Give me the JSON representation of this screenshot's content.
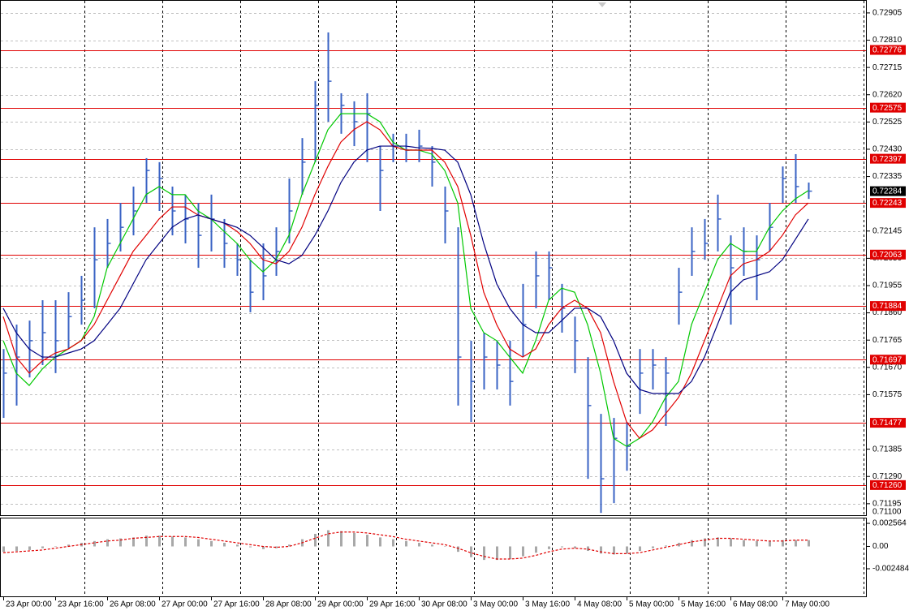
{
  "chart_data": [
    {
      "type": "ohlc",
      "color": "#3a63c4",
      "grid": true,
      "categories": [
        "23 Apr 00:00",
        null,
        null,
        null,
        "23 Apr 16:00",
        null,
        null,
        null,
        "26 Apr 08:00",
        null,
        null,
        null,
        "27 Apr 00:00",
        null,
        null,
        null,
        "27 Apr 16:00",
        null,
        null,
        null,
        "28 Apr 08:00",
        null,
        null,
        null,
        "29 Apr 00:00",
        null,
        null,
        null,
        "29 Apr 16:00",
        null,
        null,
        null,
        "30 Apr 08:00",
        null,
        null,
        null,
        "3 May 00:00",
        null,
        null,
        null,
        "3 May 16:00",
        null,
        null,
        null,
        "4 May 08:00",
        null,
        null,
        null,
        "5 May 00:00",
        null,
        null,
        null,
        "5 May 16:00",
        null,
        null,
        null,
        "6 May 08:00",
        null,
        null,
        null,
        "7 May 00:00",
        null,
        null
      ],
      "high": [
        0.71734,
        0.71819,
        0.71833,
        0.71904,
        0.71904,
        0.71932,
        0.71989,
        0.72158,
        0.72187,
        0.72243,
        0.723,
        0.72399,
        0.72385,
        0.723,
        0.72272,
        0.72243,
        0.72272,
        0.72187,
        0.72102,
        0.72045,
        0.72102,
        0.72158,
        0.72328,
        0.72469,
        0.72667,
        0.72837,
        0.72625,
        0.72597,
        0.72625,
        0.72441,
        0.72484,
        0.72484,
        0.72498,
        0.72441,
        0.723,
        0.72158,
        0.71763,
        0.71791,
        0.71763,
        0.71763,
        0.71961,
        0.72074,
        0.72074,
        0.71961,
        0.71847,
        0.71706,
        0.71508,
        0.71494,
        0.7148,
        0.71734,
        0.71734,
        0.71706,
        0.72017,
        0.72158,
        0.72187,
        0.72272,
        0.7213,
        0.72158,
        0.7213,
        0.72243,
        0.7237,
        0.72413,
        0.72314
      ],
      "low": [
        0.71494,
        0.71537,
        0.71635,
        0.71678,
        0.7165,
        0.71734,
        0.71819,
        0.71876,
        0.72017,
        0.72074,
        0.7213,
        0.72243,
        0.72215,
        0.7213,
        0.72102,
        0.72017,
        0.72074,
        0.72017,
        0.71989,
        0.71862,
        0.71904,
        0.71989,
        0.72102,
        0.72272,
        0.72385,
        0.72526,
        0.72484,
        0.72441,
        0.72385,
        0.72215,
        0.72385,
        0.72385,
        0.72385,
        0.723,
        0.72102,
        0.71537,
        0.7148,
        0.71593,
        0.71593,
        0.71537,
        0.71706,
        0.71876,
        0.71904,
        0.71791,
        0.7165,
        0.71282,
        0.71163,
        0.71197,
        0.7131,
        0.71508,
        0.71593,
        0.71466,
        0.71819,
        0.71989,
        0.72045,
        0.72074,
        0.71819,
        0.71989,
        0.71904,
        0.72074,
        0.72243,
        0.72243,
        0.72257
      ],
      "close": [
        0.7165,
        0.71706,
        0.71763,
        0.71791,
        0.71763,
        0.71847,
        0.71904,
        0.72045,
        0.72102,
        0.72158,
        0.72215,
        0.72356,
        0.72328,
        0.72215,
        0.72187,
        0.7213,
        0.72187,
        0.72102,
        0.72045,
        0.71932,
        0.71989,
        0.72074,
        0.72215,
        0.72385,
        0.72583,
        0.72667,
        0.72583,
        0.72526,
        0.72554,
        0.72356,
        0.72441,
        0.72427,
        0.72441,
        0.72385,
        0.72215,
        0.71706,
        0.71621,
        0.71706,
        0.71678,
        0.71621,
        0.71819,
        0.71989,
        0.72017,
        0.71876,
        0.71763,
        0.71537,
        0.71282,
        0.71423,
        0.71395,
        0.7165,
        0.71678,
        0.7165,
        0.71932,
        0.72074,
        0.72102,
        0.72187,
        0.72017,
        0.72074,
        0.72045,
        0.72158,
        0.72328,
        0.723,
        0.72284
      ],
      "series": [
        {
          "kind": "line",
          "color": "#00c800",
          "values": [
            0.71763,
            0.7165,
            0.71607,
            0.71664,
            0.71706,
            0.71734,
            0.71763,
            0.71847,
            0.72017,
            0.72102,
            0.72187,
            0.72272,
            0.723,
            0.72272,
            0.72272,
            0.72215,
            0.72187,
            0.72144,
            0.72102,
            0.72045,
            0.72003,
            0.72045,
            0.7213,
            0.72272,
            0.72385,
            0.72498,
            0.72554,
            0.72554,
            0.72554,
            0.72526,
            0.72455,
            0.72427,
            0.72427,
            0.72413,
            0.72356,
            0.72243,
            0.71876,
            0.71791,
            0.71763,
            0.71706,
            0.7165,
            0.71763,
            0.71904,
            0.71946,
            0.71932,
            0.71819,
            0.7165,
            0.71423,
            0.71395,
            0.71423,
            0.7148,
            0.71565,
            0.71621,
            0.71819,
            0.71932,
            0.72045,
            0.72102,
            0.72074,
            0.72074,
            0.72158,
            0.72215,
            0.72257,
            0.72286
          ]
        },
        {
          "kind": "line",
          "color": "#e00000",
          "values": [
            0.71847,
            0.71706,
            0.7165,
            0.71692,
            0.7172,
            0.71734,
            0.71763,
            0.71819,
            0.71904,
            0.71989,
            0.72074,
            0.7213,
            0.72187,
            0.72229,
            0.72229,
            0.72201,
            0.72187,
            0.72173,
            0.72144,
            0.72102,
            0.72045,
            0.72031,
            0.72074,
            0.72158,
            0.72272,
            0.7237,
            0.72455,
            0.72498,
            0.72526,
            0.72498,
            0.72441,
            0.72427,
            0.72427,
            0.72427,
            0.72385,
            0.723,
            0.7213,
            0.71932,
            0.71819,
            0.71734,
            0.71706,
            0.71734,
            0.71819,
            0.71876,
            0.71904,
            0.71876,
            0.71791,
            0.71621,
            0.7148,
            0.71423,
            0.71452,
            0.71508,
            0.71565,
            0.7165,
            0.71763,
            0.71876,
            0.71989,
            0.72031,
            0.72045,
            0.72074,
            0.7213,
            0.72201,
            0.72243
          ]
        },
        {
          "kind": "line",
          "color": "#000080",
          "values": [
            0.71876,
            0.71791,
            0.71734,
            0.71706,
            0.71706,
            0.7172,
            0.71734,
            0.71763,
            0.71819,
            0.71876,
            0.71961,
            0.72045,
            0.72102,
            0.72158,
            0.72187,
            0.72201,
            0.72187,
            0.72173,
            0.72158,
            0.7213,
            0.72088,
            0.72045,
            0.72031,
            0.7206,
            0.7213,
            0.72215,
            0.72314,
            0.72385,
            0.72427,
            0.72441,
            0.72441,
            0.72441,
            0.72435,
            0.72433,
            0.72427,
            0.72385,
            0.72272,
            0.72102,
            0.71961,
            0.71876,
            0.71819,
            0.71791,
            0.71791,
            0.71833,
            0.71876,
            0.71876,
            0.71847,
            0.71763,
            0.7165,
            0.71593,
            0.71579,
            0.71579,
            0.71579,
            0.71621,
            0.71706,
            0.71819,
            0.71932,
            0.71975,
            0.71989,
            0.72003,
            0.72045,
            0.72116,
            0.72187
          ]
        }
      ],
      "levels": [
        0.72776,
        0.72575,
        0.72397,
        0.72243,
        0.72063,
        0.71884,
        0.71697,
        0.71477,
        {
          "value": 0.7126,
          "label": "0.71260"
        }
      ],
      "level_color": "#e00000",
      "ylim": [
        0.71155,
        0.7295
      ],
      "yticks": [
        0.72905,
        {
          "value": 0.7281,
          "label": "0.72810"
        },
        0.72715,
        {
          "value": 0.7262,
          "label": "0.72620"
        },
        0.72525,
        {
          "value": 0.7243,
          "label": "0.72430"
        },
        0.72335,
        0.72145,
        {
          "value": 0.7205,
          "label": "0.72050"
        },
        0.71955,
        {
          "value": 0.7186,
          "label": "0.71860"
        },
        0.71765,
        {
          "value": 0.7167,
          "label": "0.71670"
        },
        0.71575,
        0.71385,
        {
          "value": 0.7129,
          "label": "0.71290"
        },
        0.71195,
        {
          "value": 0.711,
          "label": "0.71100"
        }
      ]
    },
    {
      "type": "bar",
      "series": [
        {
          "kind": "bar",
          "color": "#a8a8a8",
          "values": [
            -0.0006,
            -0.0005,
            -0.0004,
            -0.0002,
            0,
            0.0002,
            0.0004,
            0.0006,
            0.0008,
            0.0009,
            0.001,
            0.0012,
            0.0012,
            0.0011,
            0.001,
            0.0008,
            0.0006,
            0.0004,
            0.0002,
            -0.0001,
            -0.0003,
            -0.0002,
            0.0002,
            0.0008,
            0.0014,
            0.0018,
            0.0017,
            0.0015,
            0.0013,
            0.001,
            0.0008,
            0.0006,
            0.0004,
            0.0002,
            0,
            -0.0006,
            -0.0012,
            -0.0015,
            -0.0015,
            -0.0014,
            -0.0011,
            -0.0007,
            -0.0003,
            -0.0001,
            -0.0002,
            -0.0005,
            -0.0008,
            -0.0009,
            -0.0008,
            -0.0005,
            -0.0002,
            0.0001,
            0.0004,
            0.0007,
            0.0009,
            0.001,
            0.0009,
            0.0007,
            0.0006,
            0.0006,
            0.0007,
            0.0007,
            0.0007
          ]
        },
        {
          "kind": "line",
          "color": "#e00000",
          "dashed": true,
          "values": [
            -0.0007,
            -0.0006,
            -0.0005,
            -0.0004,
            -0.0002,
            0,
            0.0002,
            0.0004,
            0.0006,
            0.0007,
            0.0009,
            0.001,
            0.0011,
            0.0011,
            0.0011,
            0.001,
            0.0008,
            0.0006,
            0.0004,
            0.0002,
            0,
            -0.0001,
            0,
            0.0004,
            0.0009,
            0.0014,
            0.0016,
            0.0016,
            0.0015,
            0.0013,
            0.0011,
            0.0008,
            0.0006,
            0.0004,
            0.0002,
            -0.0002,
            -0.0007,
            -0.0011,
            -0.0014,
            -0.0014,
            -0.0013,
            -0.001,
            -0.0006,
            -0.0003,
            -0.0002,
            -0.0003,
            -0.0006,
            -0.0008,
            -0.0008,
            -0.0007,
            -0.0004,
            -0.0001,
            0.0002,
            0.0005,
            0.0007,
            0.0009,
            0.0009,
            0.0008,
            0.0007,
            0.0006,
            0.0006,
            0.0007,
            0.0007
          ]
        }
      ],
      "ylim": [
        -0.00555,
        0.00311
      ],
      "yticks": [
        0.002564,
        {
          "value": 0,
          "label": "0.00"
        },
        -0.002484
      ]
    }
  ]
}
